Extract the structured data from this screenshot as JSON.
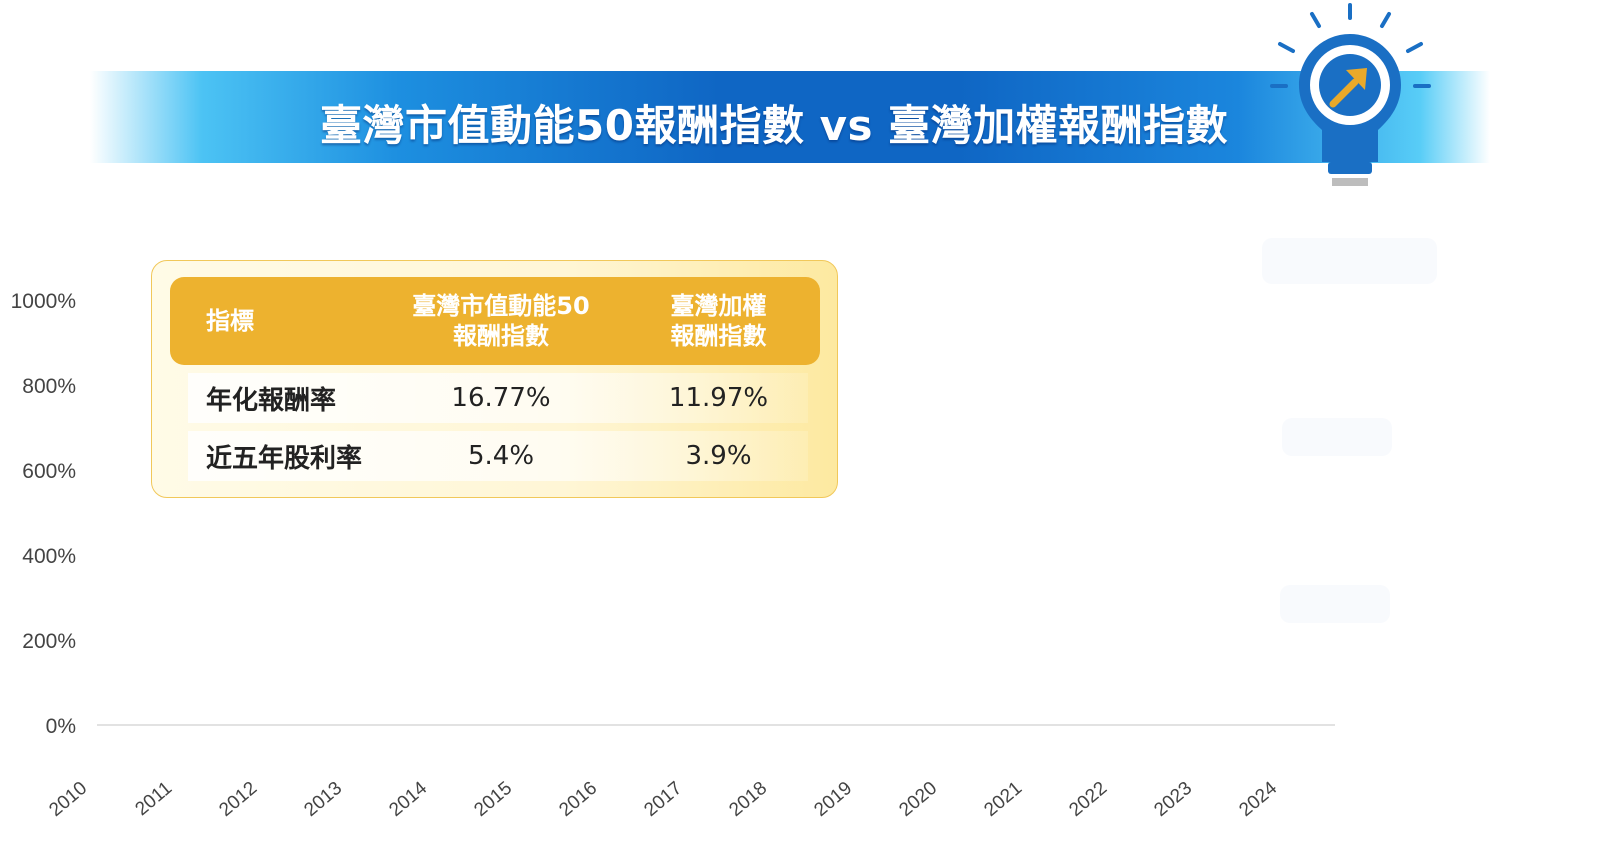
{
  "title": "臺灣市值動能50報酬指數 vs 臺灣加權報酬指數",
  "colors": {
    "banner_dark": "#0f66c4",
    "banner_light": "#4cc3f4",
    "header_gold": "#edb22f",
    "bulb_blue": "#1a6fc4",
    "arrow_gold": "#e9a92a"
  },
  "icons": {
    "bulb": "lightbulb-arrow-icon"
  },
  "table": {
    "headers": [
      "指標",
      "臺灣市值動能50\n報酬指數",
      "臺灣加權\n報酬指數"
    ],
    "rows": [
      [
        "年化報酬率",
        "16.77%",
        "11.97%"
      ],
      [
        "近五年股利率",
        "5.4%",
        "3.9%"
      ]
    ]
  },
  "chart_data": {
    "type": "line",
    "title": "",
    "xlabel": "",
    "ylabel": "",
    "x": [
      "2010",
      "2011",
      "2012",
      "2013",
      "2014",
      "2015",
      "2016",
      "2017",
      "2018",
      "2019",
      "2020",
      "2021",
      "2022",
      "2023",
      "2024"
    ],
    "y_ticks": [
      "0%",
      "200%",
      "400%",
      "600%",
      "800%",
      "1000%"
    ],
    "ylim": [
      0,
      1000
    ],
    "grid": false,
    "series": []
  }
}
